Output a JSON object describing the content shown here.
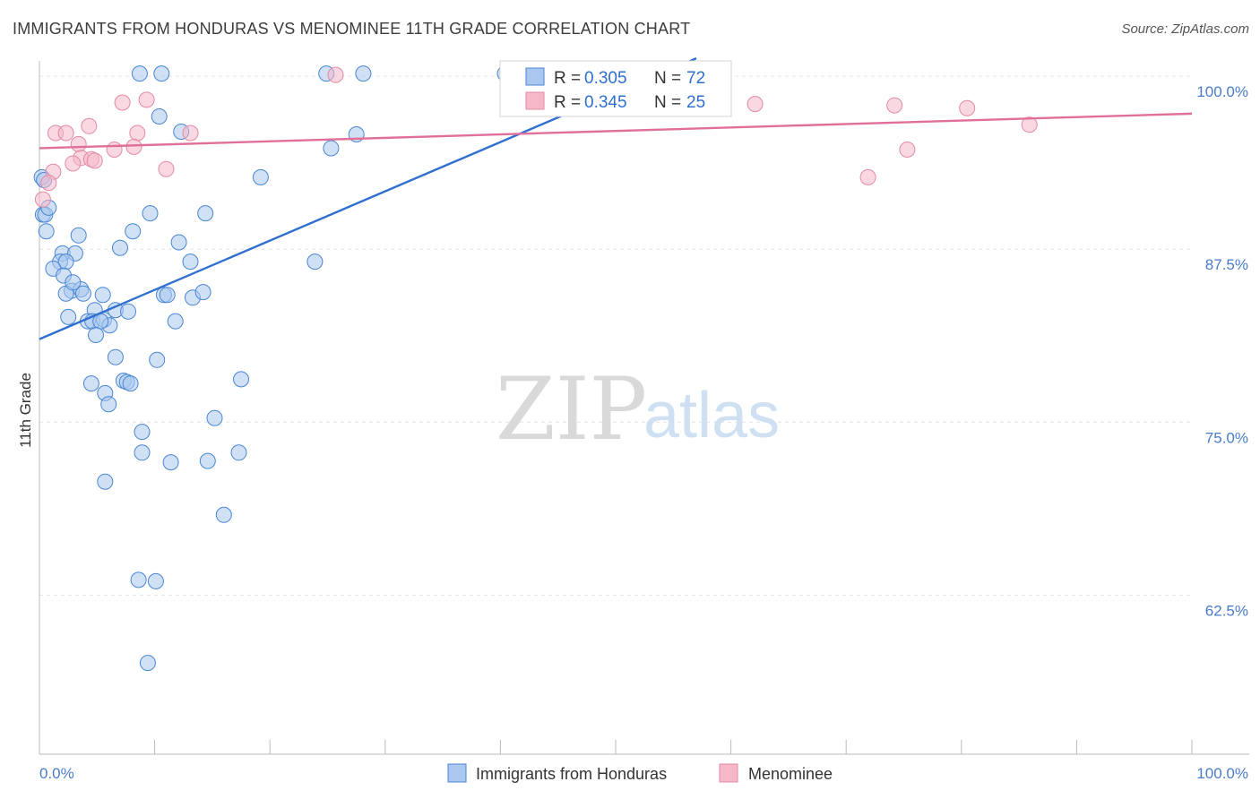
{
  "title": "IMMIGRANTS FROM HONDURAS VS MENOMINEE 11TH GRADE CORRELATION CHART",
  "source": "Source: ZipAtlas.com",
  "watermark": {
    "zip": "ZIP",
    "atlas": "atlas"
  },
  "chart_data": {
    "type": "scatter",
    "ylabel": "11th Grade",
    "xlim": [
      0,
      100
    ],
    "ylim": [
      51,
      101.5
    ],
    "y_ticks": [
      {
        "value": 100.0,
        "label": "100.0%"
      },
      {
        "value": 87.5,
        "label": "87.5%"
      },
      {
        "value": 75.0,
        "label": "75.0%"
      },
      {
        "value": 62.5,
        "label": "62.5%"
      }
    ],
    "x_tick_labels": {
      "left": "0.0%",
      "right": "100.0%"
    },
    "x_minor_ticks": [
      10,
      20,
      30,
      40,
      50,
      60,
      70,
      80,
      90,
      100
    ],
    "legend_box": [
      {
        "r_label": "R =",
        "r_value": "0.305",
        "n_label": "N =",
        "n_value": "72",
        "color": "#aac8ef"
      },
      {
        "r_label": "R =",
        "r_value": "0.345",
        "n_label": "N =",
        "n_value": "25",
        "color": "#f6b8c9"
      }
    ],
    "series": [
      {
        "name": "Immigrants from Honduras",
        "fill": "#aac8ef",
        "stroke": "#4a86d4",
        "line_color": "#2f6fcf",
        "trend": {
          "x0": 0,
          "y0": 81.0,
          "x1": 57,
          "y1": 101.3
        },
        "points": [
          [
            8.7,
            100.2
          ],
          [
            10.6,
            100.2
          ],
          [
            24.9,
            100.2
          ],
          [
            28.1,
            100.2
          ],
          [
            40.4,
            100.2
          ],
          [
            41.6,
            100.2
          ],
          [
            0.2,
            92.7
          ],
          [
            10.4,
            97.1
          ],
          [
            12.3,
            96.0
          ],
          [
            27.5,
            95.8
          ],
          [
            25.3,
            94.8
          ],
          [
            19.2,
            92.7
          ],
          [
            0.3,
            90.0
          ],
          [
            0.5,
            90.0
          ],
          [
            9.6,
            90.1
          ],
          [
            14.4,
            90.1
          ],
          [
            0.6,
            88.8
          ],
          [
            3.4,
            88.5
          ],
          [
            8.1,
            88.8
          ],
          [
            12.1,
            88.0
          ],
          [
            7.0,
            87.6
          ],
          [
            2.0,
            87.2
          ],
          [
            3.1,
            87.2
          ],
          [
            1.8,
            86.6
          ],
          [
            2.3,
            86.6
          ],
          [
            1.2,
            86.1
          ],
          [
            13.1,
            86.6
          ],
          [
            23.9,
            86.6
          ],
          [
            2.1,
            85.6
          ],
          [
            2.8,
            84.5
          ],
          [
            3.6,
            84.6
          ],
          [
            2.3,
            84.3
          ],
          [
            3.8,
            84.3
          ],
          [
            10.8,
            84.2
          ],
          [
            11.1,
            84.2
          ],
          [
            13.3,
            84.0
          ],
          [
            14.2,
            84.4
          ],
          [
            5.5,
            84.2
          ],
          [
            6.6,
            83.1
          ],
          [
            7.7,
            83.0
          ],
          [
            4.8,
            83.1
          ],
          [
            2.5,
            82.6
          ],
          [
            4.2,
            82.3
          ],
          [
            4.6,
            82.3
          ],
          [
            5.6,
            82.4
          ],
          [
            6.1,
            82.0
          ],
          [
            11.8,
            82.3
          ],
          [
            5.3,
            82.3
          ],
          [
            4.9,
            81.3
          ],
          [
            6.6,
            79.7
          ],
          [
            10.2,
            79.5
          ],
          [
            7.3,
            78.0
          ],
          [
            7.6,
            77.9
          ],
          [
            4.5,
            77.8
          ],
          [
            17.5,
            78.1
          ],
          [
            7.9,
            77.8
          ],
          [
            5.7,
            77.1
          ],
          [
            6.0,
            76.3
          ],
          [
            15.2,
            75.3
          ],
          [
            8.9,
            74.3
          ],
          [
            8.9,
            72.8
          ],
          [
            17.3,
            72.8
          ],
          [
            11.4,
            72.1
          ],
          [
            14.6,
            72.2
          ],
          [
            5.7,
            70.7
          ],
          [
            16.0,
            68.3
          ],
          [
            8.6,
            63.6
          ],
          [
            10.1,
            63.5
          ],
          [
            9.4,
            57.6
          ],
          [
            0.4,
            92.5
          ],
          [
            0.8,
            90.5
          ],
          [
            2.9,
            85.1
          ]
        ]
      },
      {
        "name": "Menominee",
        "fill": "#f6b8c9",
        "stroke": "#e38aa5",
        "line_color": "#e0709a",
        "trend": {
          "x0": 0,
          "y0": 94.8,
          "x1": 100,
          "y1": 97.3
        },
        "points": [
          [
            25.7,
            100.1
          ],
          [
            7.2,
            98.1
          ],
          [
            9.3,
            98.3
          ],
          [
            62.1,
            98.0
          ],
          [
            74.2,
            97.9
          ],
          [
            80.5,
            97.7
          ],
          [
            4.3,
            96.4
          ],
          [
            1.4,
            95.9
          ],
          [
            2.3,
            95.9
          ],
          [
            8.5,
            95.9
          ],
          [
            13.1,
            95.9
          ],
          [
            85.9,
            96.5
          ],
          [
            3.4,
            95.1
          ],
          [
            6.5,
            94.7
          ],
          [
            8.2,
            94.9
          ],
          [
            75.3,
            94.7
          ],
          [
            3.6,
            94.1
          ],
          [
            4.5,
            94.0
          ],
          [
            2.9,
            93.7
          ],
          [
            11.0,
            93.3
          ],
          [
            1.2,
            93.1
          ],
          [
            71.9,
            92.7
          ],
          [
            0.8,
            92.3
          ],
          [
            0.3,
            91.1
          ],
          [
            4.8,
            93.9
          ]
        ]
      }
    ]
  }
}
